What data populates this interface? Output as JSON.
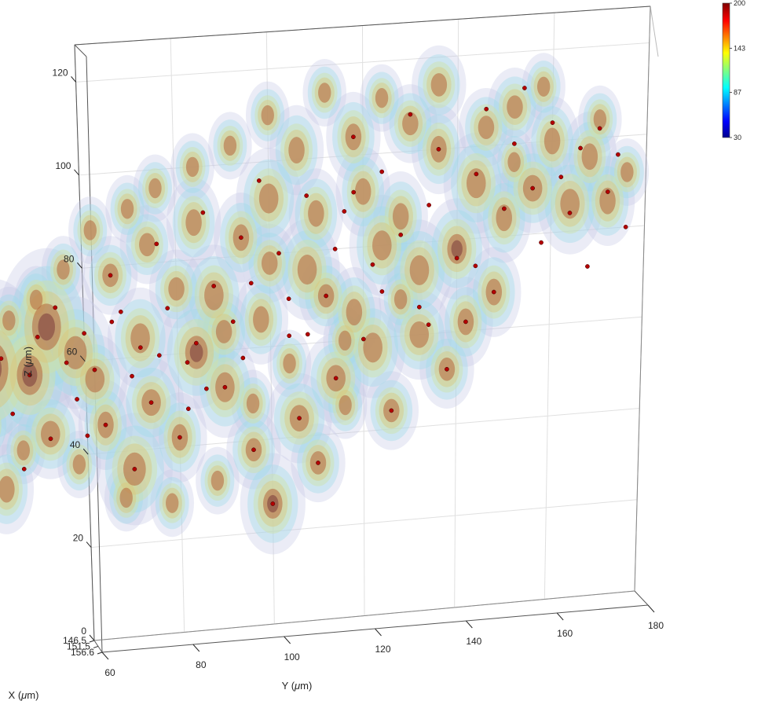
{
  "chart_data": {
    "type": "3d-volume-scatter",
    "axes": {
      "y": {
        "label": "Y (",
        "label_mu": "μ",
        "label_unit": "m)",
        "ticks": [
          "60",
          "80",
          "100",
          "120",
          "140",
          "160",
          "180"
        ],
        "range": [
          60,
          180
        ]
      },
      "z": {
        "label": "Z (",
        "label_mu": "μ",
        "label_unit": "m)",
        "ticks": [
          "0",
          "20",
          "40",
          "60",
          "80",
          "100",
          "120"
        ],
        "range": [
          0,
          128
        ]
      },
      "x": {
        "label": "X (",
        "label_mu": "μ",
        "label_unit": "m)",
        "ticks": [
          "146.5",
          "151.5",
          "156.6"
        ],
        "range": [
          146.5,
          156.6
        ]
      }
    },
    "colorbar": {
      "ticks": [
        "200",
        "143",
        "87",
        "30"
      ],
      "range": [
        30,
        200
      ],
      "colormap": [
        "#00008f",
        "#0000ff",
        "#0080ff",
        "#00ffff",
        "#80ff80",
        "#ffff00",
        "#ff8000",
        "#ff0000",
        "#800000"
      ]
    },
    "grid": true,
    "marker_color": "#b30000",
    "blobs": [
      [
        28,
        40,
        9,
        14,
        2
      ],
      [
        33,
        35,
        6,
        10,
        3
      ],
      [
        40,
        60,
        10,
        16,
        3
      ],
      [
        42,
        34,
        5,
        8,
        2
      ],
      [
        48,
        58,
        8,
        12,
        3
      ],
      [
        52,
        68,
        9,
        14,
        3
      ],
      [
        58,
        62,
        7,
        10,
        2
      ],
      [
        62,
        56,
        6,
        8,
        2
      ],
      [
        70,
        36,
        7,
        10,
        2
      ],
      [
        74,
        50,
        6,
        8,
        2
      ],
      [
        80,
        42,
        5,
        8,
        2
      ],
      [
        84,
        60,
        7,
        10,
        3
      ],
      [
        90,
        52,
        6,
        9,
        2
      ],
      [
        96,
        38,
        5,
        7,
        2
      ],
      [
        100,
        26,
        6,
        9,
        3
      ],
      [
        106,
        44,
        6,
        8,
        2
      ],
      [
        110,
        34,
        5,
        7,
        2
      ],
      [
        114,
        52,
        6,
        8,
        2
      ],
      [
        26,
        58,
        5,
        8,
        2
      ],
      [
        38,
        48,
        5,
        7,
        2
      ],
      [
        52,
        45,
        6,
        8,
        2
      ],
      [
        64,
        46,
        5,
        8,
        2
      ],
      [
        72,
        64,
        6,
        9,
        2
      ],
      [
        88,
        72,
        6,
        9,
        2
      ],
      [
        98,
        66,
        5,
        8,
        2
      ],
      [
        108,
        76,
        6,
        9,
        2
      ],
      [
        118,
        66,
        5,
        8,
        2
      ],
      [
        124,
        80,
        6,
        9,
        2
      ],
      [
        120,
        92,
        5,
        8,
        2
      ],
      [
        132,
        74,
        6,
        9,
        2
      ],
      [
        128,
        86,
        5,
        8,
        2
      ],
      [
        140,
        78,
        6,
        9,
        3
      ],
      [
        144,
        92,
        6,
        9,
        2
      ],
      [
        150,
        84,
        5,
        8,
        2
      ],
      [
        156,
        90,
        6,
        8,
        2
      ],
      [
        160,
        100,
        5,
        8,
        2
      ],
      [
        164,
        86,
        6,
        9,
        2
      ],
      [
        168,
        96,
        5,
        8,
        2
      ],
      [
        172,
        86,
        5,
        8,
        2
      ],
      [
        136,
        100,
        5,
        8,
        2
      ],
      [
        130,
        106,
        5,
        7,
        2
      ],
      [
        118,
        104,
        5,
        8,
        2
      ],
      [
        106,
        102,
        5,
        8,
        2
      ],
      [
        100,
        92,
        6,
        9,
        2
      ],
      [
        110,
        88,
        5,
        8,
        2
      ],
      [
        94,
        84,
        5,
        8,
        2
      ],
      [
        84,
        88,
        5,
        8,
        2
      ],
      [
        74,
        84,
        5,
        7,
        2
      ],
      [
        66,
        78,
        5,
        7,
        2
      ],
      [
        80,
        74,
        5,
        7,
        2
      ],
      [
        90,
        64,
        5,
        7,
        2
      ],
      [
        100,
        78,
        5,
        7,
        2
      ],
      [
        112,
        70,
        5,
        7,
        2
      ],
      [
        122,
        58,
        6,
        9,
        2
      ],
      [
        132,
        60,
        6,
        8,
        2
      ],
      [
        142,
        62,
        5,
        8,
        2
      ],
      [
        148,
        68,
        5,
        8,
        2
      ],
      [
        138,
        52,
        5,
        7,
        2
      ],
      [
        126,
        44,
        5,
        7,
        2
      ],
      [
        116,
        46,
        4,
        6,
        2
      ],
      [
        146,
        104,
        5,
        7,
        2
      ],
      [
        152,
        108,
        5,
        7,
        2
      ],
      [
        158,
        112,
        4,
        6,
        2
      ],
      [
        136,
        114,
        5,
        7,
        2
      ],
      [
        124,
        112,
        4,
        6,
        2
      ],
      [
        112,
        114,
        4,
        6,
        2
      ],
      [
        100,
        110,
        4,
        6,
        2
      ],
      [
        92,
        104,
        4,
        6,
        2
      ],
      [
        84,
        100,
        4,
        6,
        2
      ],
      [
        76,
        96,
        4,
        6,
        2
      ],
      [
        70,
        92,
        4,
        6,
        2
      ],
      [
        62,
        88,
        4,
        6,
        2
      ],
      [
        56,
        80,
        4,
        6,
        2
      ],
      [
        50,
        74,
        4,
        6,
        2
      ],
      [
        44,
        70,
        4,
        6,
        2
      ],
      [
        36,
        66,
        4,
        6,
        2
      ],
      [
        30,
        62,
        4,
        6,
        2
      ],
      [
        34,
        52,
        4,
        6,
        2
      ],
      [
        46,
        42,
        4,
        6,
        2
      ],
      [
        58,
        38,
        4,
        6,
        2
      ],
      [
        68,
        30,
        4,
        6,
        2
      ],
      [
        78,
        28,
        4,
        6,
        2
      ],
      [
        88,
        32,
        4,
        6,
        2
      ],
      [
        96,
        48,
        4,
        6,
        2
      ],
      [
        104,
        56,
        4,
        6,
        2
      ],
      [
        116,
        60,
        4,
        6,
        2
      ],
      [
        128,
        68,
        4,
        6,
        2
      ],
      [
        152,
        96,
        4,
        6,
        2
      ],
      [
        170,
        104,
        4,
        6,
        2
      ],
      [
        176,
        92,
        4,
        6,
        2
      ]
    ],
    "points": [
      [
        24,
        36
      ],
      [
        28,
        42
      ],
      [
        30,
        30
      ],
      [
        34,
        38
      ],
      [
        36,
        26
      ],
      [
        38,
        46
      ],
      [
        40,
        56
      ],
      [
        42,
        62
      ],
      [
        44,
        50
      ],
      [
        46,
        38
      ],
      [
        48,
        58
      ],
      [
        50,
        66
      ],
      [
        52,
        44
      ],
      [
        54,
        72
      ],
      [
        56,
        60
      ],
      [
        58,
        52
      ],
      [
        60,
        66
      ],
      [
        62,
        58
      ],
      [
        64,
        46
      ],
      [
        66,
        78
      ],
      [
        68,
        70
      ],
      [
        70,
        36
      ],
      [
        72,
        62
      ],
      [
        74,
        50
      ],
      [
        76,
        84
      ],
      [
        78,
        70
      ],
      [
        80,
        42
      ],
      [
        82,
        58
      ],
      [
        84,
        62
      ],
      [
        86,
        90
      ],
      [
        88,
        74
      ],
      [
        90,
        52
      ],
      [
        92,
        66
      ],
      [
        94,
        84
      ],
      [
        96,
        38
      ],
      [
        98,
        96
      ],
      [
        100,
        26
      ],
      [
        102,
        80
      ],
      [
        104,
        62
      ],
      [
        106,
        44
      ],
      [
        108,
        92
      ],
      [
        110,
        34
      ],
      [
        112,
        70
      ],
      [
        114,
        52
      ],
      [
        116,
        88
      ],
      [
        118,
        104
      ],
      [
        120,
        60
      ],
      [
        122,
        76
      ],
      [
        124,
        96
      ],
      [
        126,
        44
      ],
      [
        128,
        82
      ],
      [
        130,
        108
      ],
      [
        132,
        66
      ],
      [
        134,
        88
      ],
      [
        136,
        100
      ],
      [
        138,
        52
      ],
      [
        140,
        76
      ],
      [
        142,
        62
      ],
      [
        144,
        94
      ],
      [
        146,
        108
      ],
      [
        148,
        68
      ],
      [
        150,
        86
      ],
      [
        152,
        100
      ],
      [
        154,
        112
      ],
      [
        156,
        90
      ],
      [
        158,
        78
      ],
      [
        160,
        104
      ],
      [
        162,
        92
      ],
      [
        164,
        84
      ],
      [
        166,
        98
      ],
      [
        168,
        72
      ],
      [
        170,
        102
      ],
      [
        172,
        88
      ],
      [
        174,
        96
      ],
      [
        176,
        80
      ],
      [
        60,
        44
      ],
      [
        70,
        56
      ],
      [
        82,
        48
      ],
      [
        94,
        58
      ],
      [
        104,
        70
      ],
      [
        114,
        80
      ],
      [
        124,
        70
      ],
      [
        134,
        62
      ],
      [
        144,
        74
      ],
      [
        66,
        68
      ],
      [
        76,
        60
      ],
      [
        86,
        52
      ],
      [
        96,
        74
      ],
      [
        108,
        62
      ],
      [
        118,
        92
      ]
    ]
  }
}
